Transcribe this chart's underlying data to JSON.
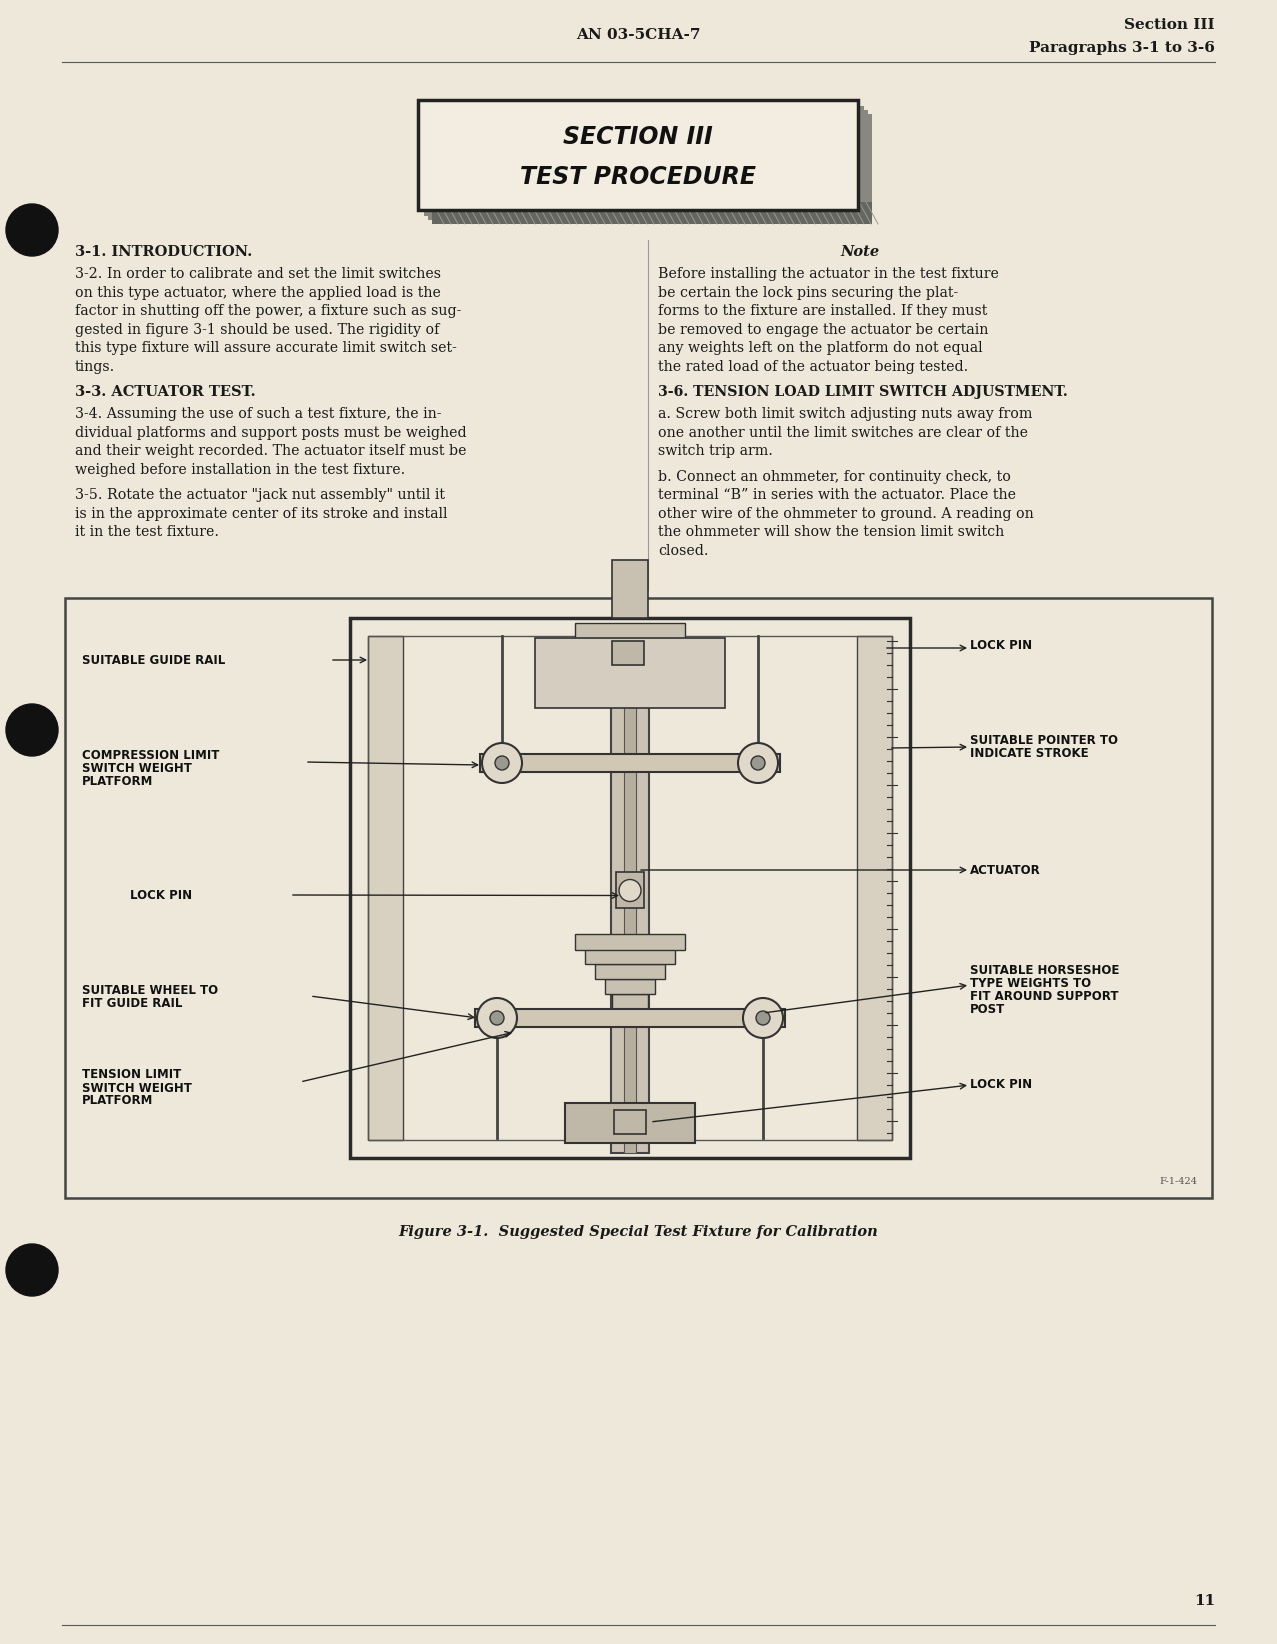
{
  "page_bg_color": "#ede8da",
  "text_color": "#1a1a1a",
  "header_doc_number": "AN 03-5CHA-7",
  "header_section": "Section III",
  "header_paragraphs": "Paragraphs 3-1 to 3-6",
  "section_title_line1": "SECTION III",
  "section_title_line2": "TEST PROCEDURE",
  "heading_31": "3-1. INTRODUCTION.",
  "heading_33": "3-3. ACTUATOR TEST.",
  "note_title": "Note",
  "heading_36": "3-6. TENSION LOAD LIMIT SWITCH ADJUSTMENT.",
  "fig_caption": "Figure 3-1.  Suggested Special Test Fixture for Calibration",
  "page_number": "11",
  "fig_number_small": "F-1-424",
  "para32_lines": [
    "3-2. In order to calibrate and set the limit switches",
    "on this type actuator, where the applied load is the",
    "factor in shutting off the power, a fixture such as sug-",
    "gested in figure 3-1 should be used. The rigidity of",
    "this type fixture will assure accurate limit switch set-",
    "tings."
  ],
  "para34_lines": [
    "3-4. Assuming the use of such a test fixture, the in-",
    "dividual platforms and support posts must be weighed",
    "and their weight recorded. The actuator itself must be",
    "weighed before installation in the test fixture."
  ],
  "para35_lines": [
    "3-5. Rotate the actuator \"jack nut assembly\" until it",
    "is in the approximate center of its stroke and install",
    "it in the test fixture."
  ],
  "note_lines": [
    "Before installing the actuator in the test fixture",
    "be certain the lock pins securing the plat-",
    "forms to the fixture are installed. If they must",
    "be removed to engage the actuator be certain",
    "any weights left on the platform do not equal",
    "the rated load of the actuator being tested."
  ],
  "para36a_lines": [
    "a. Screw both limit switch adjusting nuts away from",
    "one another until the limit switches are clear of the",
    "switch trip arm."
  ],
  "para36b_lines": [
    "b. Connect an ohmmeter, for continuity check, to",
    "terminal “B” in series with the actuator. Place the",
    "other wire of the ohmmeter to ground. A reading on",
    "the ohmmeter will show the tension limit switch",
    "closed."
  ]
}
